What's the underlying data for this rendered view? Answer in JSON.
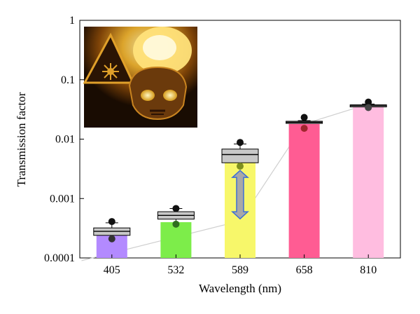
{
  "chart_data": {
    "type": "bar",
    "title": "",
    "xlabel": "Wavelength (nm)",
    "ylabel": "Transmission factor",
    "y_scale": "log",
    "ylim": [
      0.0001,
      1
    ],
    "y_ticks": [
      {
        "value": 0.0001,
        "label": "0.0001"
      },
      {
        "value": 0.001,
        "label": "0.001"
      },
      {
        "value": 0.01,
        "label": "0.01"
      },
      {
        "value": 0.1,
        "label": "0.1"
      },
      {
        "value": 1,
        "label": "1"
      }
    ],
    "categories": [
      "405",
      "532",
      "589",
      "658",
      "810"
    ],
    "values": [
      0.00024,
      0.0004,
      0.0045,
      0.018,
      0.036
    ],
    "bar_colors": [
      "#b38aff",
      "#7ded4a",
      "#f7f76a",
      "#ff5c93",
      "#ffbde0"
    ],
    "box_stats": [
      {
        "median": 0.00028,
        "q1": 0.00024,
        "q3": 0.00032,
        "whisker_low": 0.00024,
        "whisker_high": 0.00039
      },
      {
        "median": 0.00052,
        "q1": 0.00045,
        "q3": 0.0006,
        "whisker_low": 0.0004,
        "whisker_high": 0.00068
      },
      {
        "median": 0.0055,
        "q1": 0.004,
        "q3": 0.0068,
        "whisker_low": 0.004,
        "whisker_high": 0.0083
      },
      {
        "median": 0.0192,
        "q1": 0.0184,
        "q3": 0.02,
        "whisker_low": 0.0184,
        "whisker_high": 0.0205
      },
      {
        "median": 0.0365,
        "q1": 0.0355,
        "q3": 0.0378,
        "whisker_low": 0.0355,
        "whisker_high": 0.039
      }
    ],
    "points_high": [
      0.00041,
      0.00068,
      0.0088,
      0.0232,
      0.042
    ],
    "points_low": [
      0.00021,
      0.00037,
      0.0035,
      0.0152,
      0.034
    ],
    "points_low_colors": [
      "#333333",
      "#2f6e1f",
      "#7d8f1e",
      "#a0262e",
      "#444444"
    ],
    "trend_line": [
      {
        "x": 345,
        "y": 9e-05
      },
      {
        "x": 589,
        "y": 0.00042
      },
      {
        "x": 658,
        "y": 0.018
      },
      {
        "x": 810,
        "y": 0.039
      }
    ],
    "arrow": {
      "category": "589",
      "from": 0.00042,
      "to": 0.0035,
      "color": "#3d6fd6"
    },
    "inset": {
      "description_icon": "laser-skull-photo"
    }
  }
}
